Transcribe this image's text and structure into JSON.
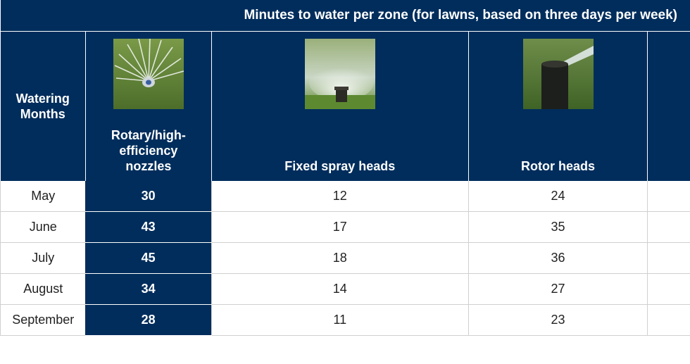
{
  "title": "Minutes to water per zone (for lawns, based on three days per week)",
  "header": {
    "months_label_line1": "Watering",
    "months_label_line2": "Months",
    "columns": [
      {
        "label_lines": [
          "Rotary/high-",
          "efficiency",
          "nozzles"
        ],
        "image": "rotary-nozzle-photo"
      },
      {
        "label_lines": [
          "Fixed spray heads"
        ],
        "image": "fixed-spray-head-photo"
      },
      {
        "label_lines": [
          "Rotor heads"
        ],
        "image": "rotor-head-photo"
      }
    ]
  },
  "rows": [
    {
      "month": "May",
      "rotary": "30",
      "fixed": "12",
      "rotor": "24"
    },
    {
      "month": "June",
      "rotary": "43",
      "fixed": "17",
      "rotor": "35"
    },
    {
      "month": "July",
      "rotary": "45",
      "fixed": "18",
      "rotor": "36"
    },
    {
      "month": "August",
      "rotary": "34",
      "fixed": "14",
      "rotor": "27"
    },
    {
      "month": "September",
      "rotary": "28",
      "fixed": "11",
      "rotor": "23"
    }
  ],
  "colors": {
    "navy": "#002d5c",
    "grid": "#d0d0d0"
  }
}
